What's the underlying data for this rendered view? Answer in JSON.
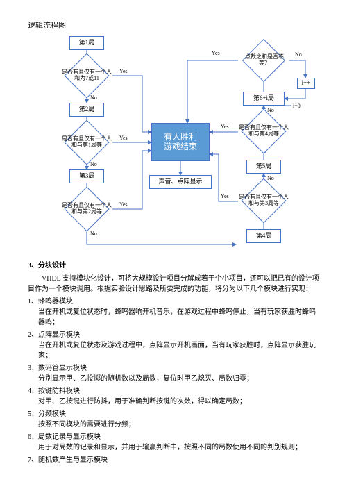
{
  "title": "逻辑流程图",
  "colors": {
    "border": "#4472c4",
    "centerFill": "#5b9bd5",
    "centerText": "#ffffff",
    "line": "#4472c4",
    "text_black": "#000000"
  },
  "flow": {
    "round1": "第1局",
    "round2": "第2局",
    "round3": "第3局",
    "round4": "第4局",
    "round5": "第5局",
    "round6i": "第6+i局",
    "d1": "是否有且仅有一个人和为7或11",
    "d2": "是否有且仅有一个人和与第1局等",
    "d3": "是否有且仅有一个人和与第2局等",
    "d4": "是否有且仅有一个人和与第3局等",
    "d5": "是否有且仅有一个人和与第4局等",
    "d6": "点数之和是否不等？",
    "center1": "有人胜利",
    "center2": "游戏结束",
    "audio": "声音、点阵显示",
    "yes": "Yes",
    "no": "No",
    "ipp": "i++",
    "i0": "i=0"
  },
  "section3_title": "3、分块设计",
  "section3_para": "VHDL 支持模块化设计，可将大规模设计项目分解成若干个小项目，还可以把已有的设计项目作为一个模块调用。根据实验设计思路及所要完成的功能，将分为以下几个模块进行实现：",
  "items": [
    {
      "t": "1、蜂鸣器模块",
      "b": "当在开机或复位状态时，蜂鸣器响开机音乐，在游戏过程中蜂鸣停止，当有玩家获胜时蜂鸣器鸣；"
    },
    {
      "t": "2、点阵显示模块",
      "b": "当在开机或复位状态及游戏过程中，点阵显示开机画面，当有玩家获胜时，点阵显示获胜玩家；"
    },
    {
      "t": "3、数码管显示模块",
      "b": "分别显示甲、乙投掷的随机数以及局数，复位时甲乙熄灭、局数归零；"
    },
    {
      "t": "4、按键防抖模块",
      "b": "对甲、乙按键进行防抖，用于准确判断按键的次数，得以确定局数；"
    },
    {
      "t": "5、分频模块",
      "b": "按照不同模块的需要进行分频；"
    },
    {
      "t": "6、局数记录与显示模块",
      "b": "用于对局数的记录和显示，并用于输赢判断中，按照不同的局数使用不同的判别规则；"
    },
    {
      "t": "7、随机数产生与显示模块",
      "b": ""
    }
  ]
}
